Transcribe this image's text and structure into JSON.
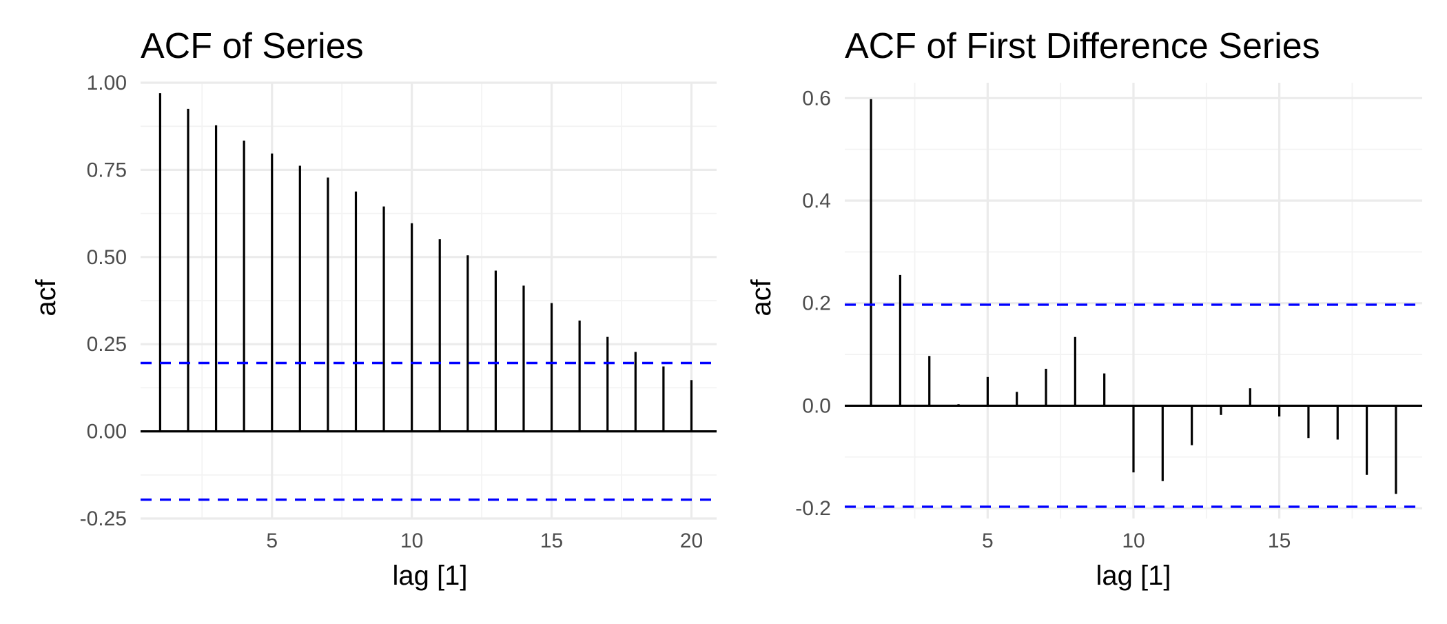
{
  "chart_data": [
    {
      "type": "bar",
      "title": "ACF of Series",
      "xlabel": "lag [1]",
      "ylabel": "acf",
      "xlim": [
        0.3,
        20.9
      ],
      "ylim": [
        -0.25,
        1.0
      ],
      "xticks": [
        5,
        10,
        15,
        20
      ],
      "xtick_labels": [
        "5",
        "10",
        "15",
        "20"
      ],
      "yticks": [
        -0.25,
        0,
        0.25,
        0.5,
        0.75,
        1.0
      ],
      "ytick_labels": [
        "-0.25",
        "0.00",
        "0.25",
        "0.50",
        "0.75",
        "1.00"
      ],
      "grid": true,
      "confidence_bounds": [
        0.196,
        -0.196
      ],
      "lags": [
        1,
        2,
        3,
        4,
        5,
        6,
        7,
        8,
        9,
        10,
        11,
        12,
        13,
        14,
        15,
        16,
        17,
        18,
        19,
        20
      ],
      "values": [
        0.97,
        0.925,
        0.878,
        0.834,
        0.797,
        0.762,
        0.728,
        0.688,
        0.645,
        0.597,
        0.551,
        0.505,
        0.461,
        0.418,
        0.368,
        0.318,
        0.271,
        0.228,
        0.186,
        0.147
      ]
    },
    {
      "type": "bar",
      "title": "ACF of First Difference Series",
      "xlabel": "lag [1]",
      "ylabel": "acf",
      "xlim": [
        0.1,
        19.9
      ],
      "ylim": [
        -0.22,
        0.63
      ],
      "xticks": [
        5,
        10,
        15
      ],
      "xtick_labels": [
        "5",
        "10",
        "15"
      ],
      "yticks": [
        -0.2,
        0,
        0.2,
        0.4,
        0.6
      ],
      "ytick_labels": [
        "-0.2",
        "0.0",
        "0.2",
        "0.4",
        "0.6"
      ],
      "grid": true,
      "confidence_bounds": [
        0.197,
        -0.197
      ],
      "lags": [
        1,
        2,
        3,
        4,
        5,
        6,
        7,
        8,
        9,
        10,
        11,
        12,
        13,
        14,
        15,
        16,
        17,
        18,
        19
      ],
      "values": [
        0.598,
        0.255,
        0.097,
        0.003,
        0.056,
        0.027,
        0.072,
        0.134,
        0.063,
        -0.13,
        -0.147,
        -0.077,
        -0.018,
        0.034,
        -0.021,
        -0.063,
        -0.066,
        -0.135,
        -0.172
      ]
    }
  ]
}
